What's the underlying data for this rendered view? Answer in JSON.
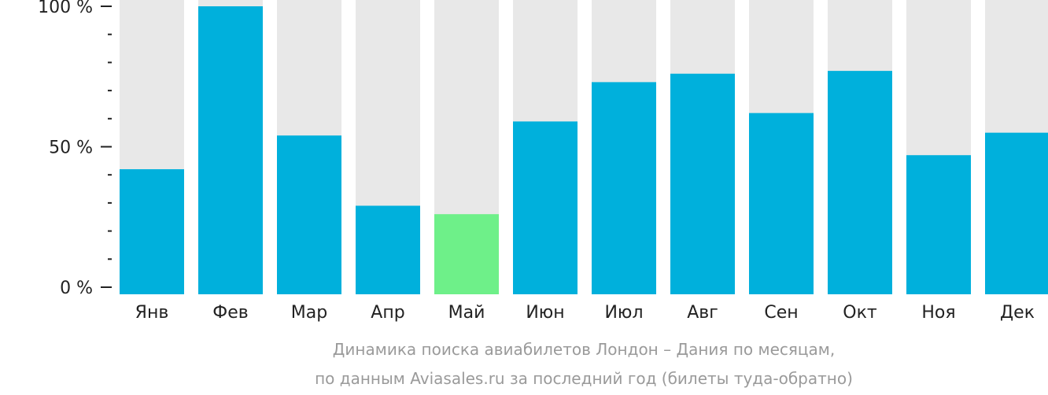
{
  "chart_data": {
    "type": "bar",
    "categories": [
      "Янв",
      "Фев",
      "Мар",
      "Апр",
      "Май",
      "Июн",
      "Июл",
      "Авг",
      "Сен",
      "Окт",
      "Ноя",
      "Дек"
    ],
    "values": [
      42,
      100,
      54,
      29,
      26,
      59,
      73,
      76,
      62,
      77,
      47,
      55
    ],
    "highlight_index": 4,
    "ylim": [
      0,
      100
    ],
    "yticks": [
      {
        "value": 100,
        "label": "100 %"
      },
      {
        "value": 50,
        "label": "50 %"
      },
      {
        "value": 0,
        "label": "0 %"
      }
    ],
    "minor_tick_step": 10,
    "caption_line1": "Динамика поиска авиабилетов Лондон – Дания по месяцам,",
    "caption_line2": "по данным Aviasales.ru за последний год (билеты туда-обратно)",
    "colors": {
      "bar": "#00b0dc",
      "highlight": "#6ef089",
      "track": "#e8e8e8",
      "axis": "#222222",
      "text": "#222222",
      "caption": "#9a9a9a"
    }
  }
}
